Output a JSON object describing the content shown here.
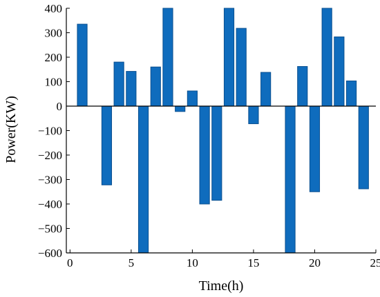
{
  "chart_data": {
    "type": "bar",
    "title": "",
    "xlabel": "Time(h)",
    "ylabel": "Power(KW)",
    "xlim": [
      -0.3,
      25
    ],
    "ylim": [
      -600,
      400
    ],
    "x_ticks": [
      0,
      5,
      10,
      15,
      20,
      25
    ],
    "y_ticks": [
      400,
      300,
      200,
      100,
      0,
      -100,
      -200,
      -300,
      -400,
      -500,
      -600
    ],
    "x": [
      1,
      2,
      3,
      4,
      5,
      6,
      7,
      8,
      9,
      10,
      11,
      12,
      13,
      14,
      15,
      16,
      17,
      18,
      19,
      20,
      21,
      22,
      23,
      24
    ],
    "values": [
      335,
      0,
      -322,
      180,
      142,
      -620,
      160,
      400,
      -22,
      62,
      -400,
      -385,
      400,
      318,
      -72,
      138,
      0,
      -620,
      162,
      -350,
      400,
      283,
      103,
      -338
    ],
    "grid": false,
    "bar_color": "#0f6cbd"
  }
}
